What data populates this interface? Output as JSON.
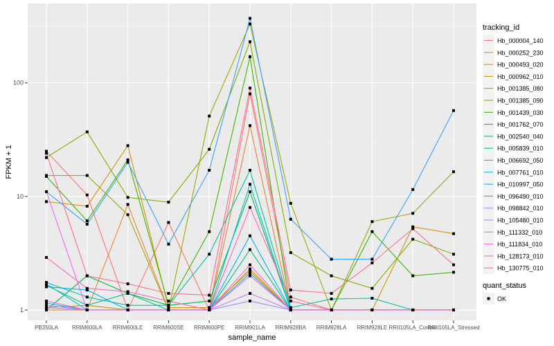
{
  "chart_data": {
    "type": "line",
    "title": "",
    "xlabel": "sample_name",
    "ylabel": "FPKM + 1",
    "y_scale": "log10",
    "ylim": [
      0.81,
      500
    ],
    "y_ticks": [
      1,
      10,
      100
    ],
    "y_tick_labels": [
      "1",
      "10",
      "100"
    ],
    "grid": true,
    "legend_position": "right",
    "legend_title": "tracking_id",
    "categories": [
      "PB350LA",
      "RRIM600LA",
      "RRIM600LE",
      "RRIM600SE",
      "RRIM600PE",
      "RRIM901LA",
      "RRIM928BA",
      "RRIM928LA",
      "RRIM928LE",
      "RRII105LA_Control",
      "RRII105LA_Stressed"
    ],
    "series": [
      {
        "name": "Hb_000004_140",
        "color": "#F8766D",
        "values": [
          25,
          10.3,
          1,
          5.9,
          1,
          80,
          1.3,
          1,
          1,
          1,
          1
        ]
      },
      {
        "name": "Hb_000252_230",
        "color": "#EA8331",
        "values": [
          1,
          1,
          8.5,
          1,
          1,
          42,
          1,
          1,
          1,
          1,
          1
        ]
      },
      {
        "name": "Hb_000493_020",
        "color": "#D89000",
        "values": [
          9,
          8.2,
          28,
          1.05,
          1.05,
          2.2,
          1,
          1,
          1,
          5.4,
          4.7
        ]
      },
      {
        "name": "Hb_000962_010",
        "color": "#C09B00",
        "values": [
          1.05,
          1.1,
          1,
          1,
          1,
          2.3,
          1,
          1,
          1,
          1,
          1
        ]
      },
      {
        "name": "Hb_001385_080",
        "color": "#A3A500",
        "values": [
          15.3,
          15.3,
          6.9,
          1,
          51,
          330,
          8.7,
          1,
          6,
          7.1,
          16.5
        ]
      },
      {
        "name": "Hb_001385_090",
        "color": "#7CAE00",
        "values": [
          22,
          37,
          9.8,
          8.9,
          26,
          230,
          3.2,
          2,
          1.55,
          4.2,
          3.1
        ]
      },
      {
        "name": "Hb_001439_030",
        "color": "#39B600",
        "values": [
          15,
          6.1,
          21,
          1.1,
          4.9,
          170,
          1,
          1,
          4.9,
          2,
          2.15
        ]
      },
      {
        "name": "Hb_001762_070",
        "color": "#00BB4E",
        "values": [
          1,
          2,
          1.4,
          1.1,
          1.2,
          11,
          1,
          1,
          1,
          1,
          1
        ]
      },
      {
        "name": "Hb_002540_040",
        "color": "#00BF7D",
        "values": [
          1.65,
          1.1,
          1.4,
          1,
          1,
          3.4,
          1,
          1,
          1,
          1,
          1
        ]
      },
      {
        "name": "Hb_005839_010",
        "color": "#00C1A3",
        "values": [
          1.75,
          1.3,
          1.1,
          1.1,
          3.1,
          17,
          1.05,
          1.25,
          1.27,
          1,
          1
        ]
      },
      {
        "name": "Hb_006692_050",
        "color": "#00BFC4",
        "values": [
          1.7,
          1,
          1,
          1,
          1,
          12.8,
          1,
          1,
          1,
          1,
          1
        ]
      },
      {
        "name": "Hb_007761_010",
        "color": "#00BAE0",
        "values": [
          1.15,
          1,
          1,
          1,
          1,
          2.1,
          1,
          1,
          1,
          1,
          1
        ]
      },
      {
        "name": "Hb_010997_050",
        "color": "#00B0F6",
        "values": [
          1.6,
          1.5,
          1,
          1,
          1,
          4.5,
          1,
          1,
          1,
          1,
          1
        ]
      },
      {
        "name": "Hb_096490_010",
        "color": "#35A2FF",
        "values": [
          11,
          5.7,
          20,
          3.8,
          17,
          370,
          6.3,
          2.8,
          2.8,
          11.5,
          57
        ]
      },
      {
        "name": "Hb_098842_010",
        "color": "#9590FF",
        "values": [
          1.05,
          1,
          1,
          1,
          1,
          1.2,
          1,
          1,
          1,
          1,
          1
        ]
      },
      {
        "name": "Hb_105480_010",
        "color": "#C77CFF",
        "values": [
          1.1,
          1,
          1,
          1,
          1,
          1.4,
          1,
          1,
          1,
          1,
          1
        ]
      },
      {
        "name": "Hb_111332_010",
        "color": "#E76BF3",
        "values": [
          11,
          1,
          1,
          1,
          1,
          2,
          1,
          1,
          1,
          1,
          1
        ]
      },
      {
        "name": "Hb_111834_010",
        "color": "#FA62DB",
        "values": [
          1.2,
          1,
          1,
          1,
          1,
          2.5,
          1,
          1,
          1,
          1,
          1
        ]
      },
      {
        "name": "Hb_128173_010",
        "color": "#FF62BC",
        "values": [
          2.9,
          1.55,
          1.45,
          1.2,
          1,
          8,
          1.2,
          1,
          1,
          1,
          1
        ]
      },
      {
        "name": "Hb_130775_010",
        "color": "#FF6C91",
        "values": [
          24,
          2,
          1.7,
          1.4,
          1.35,
          90,
          1.5,
          1.4,
          2.6,
          5.2,
          2.5
        ]
      }
    ],
    "shape_legend": {
      "title": "quant_status",
      "items": [
        "OK"
      ]
    }
  }
}
